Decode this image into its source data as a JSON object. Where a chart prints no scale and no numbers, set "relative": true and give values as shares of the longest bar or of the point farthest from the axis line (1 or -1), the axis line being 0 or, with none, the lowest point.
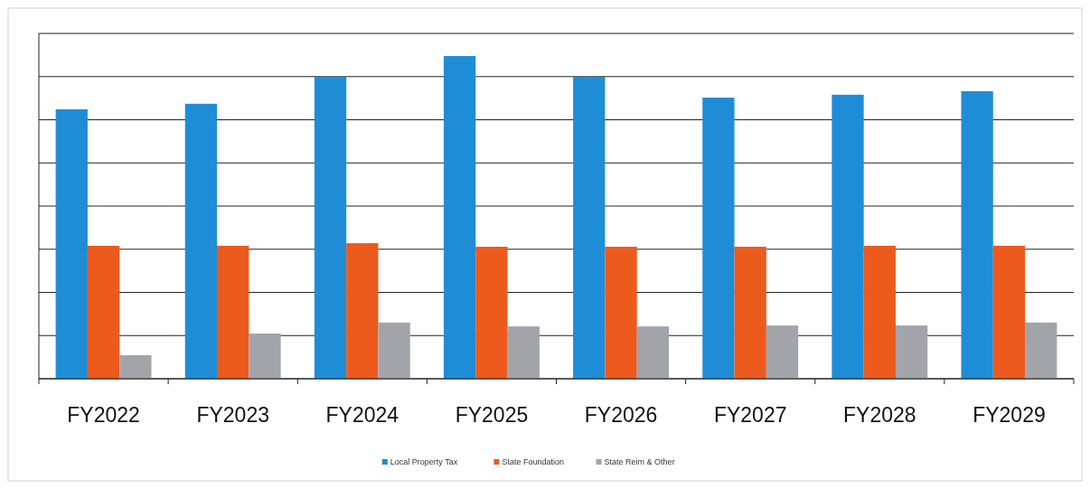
{
  "chart_data": {
    "type": "bar",
    "relative": true,
    "grid": "y",
    "legend": "bottom",
    "categories": [
      "FY2022",
      "FY2023",
      "FY2024",
      "FY2025",
      "FY2026",
      "FY2027",
      "FY2028",
      "FY2029"
    ],
    "series": [
      {
        "name": "Local Property Tax",
        "color": "#1f8dd6",
        "values": [
          0.835,
          0.852,
          0.936,
          1,
          0.936,
          0.871,
          0.88,
          0.891
        ]
      },
      {
        "name": "State Foundation",
        "color": "#ec5a1e",
        "values": [
          0.412,
          0.412,
          0.42,
          0.409,
          0.409,
          0.409,
          0.412,
          0.412
        ]
      },
      {
        "name": "State Reim & Other",
        "color": "#a3a4aa",
        "values": [
          0.073,
          0.14,
          0.174,
          0.162,
          0.162,
          0.165,
          0.165,
          0.174
        ]
      }
    ]
  }
}
